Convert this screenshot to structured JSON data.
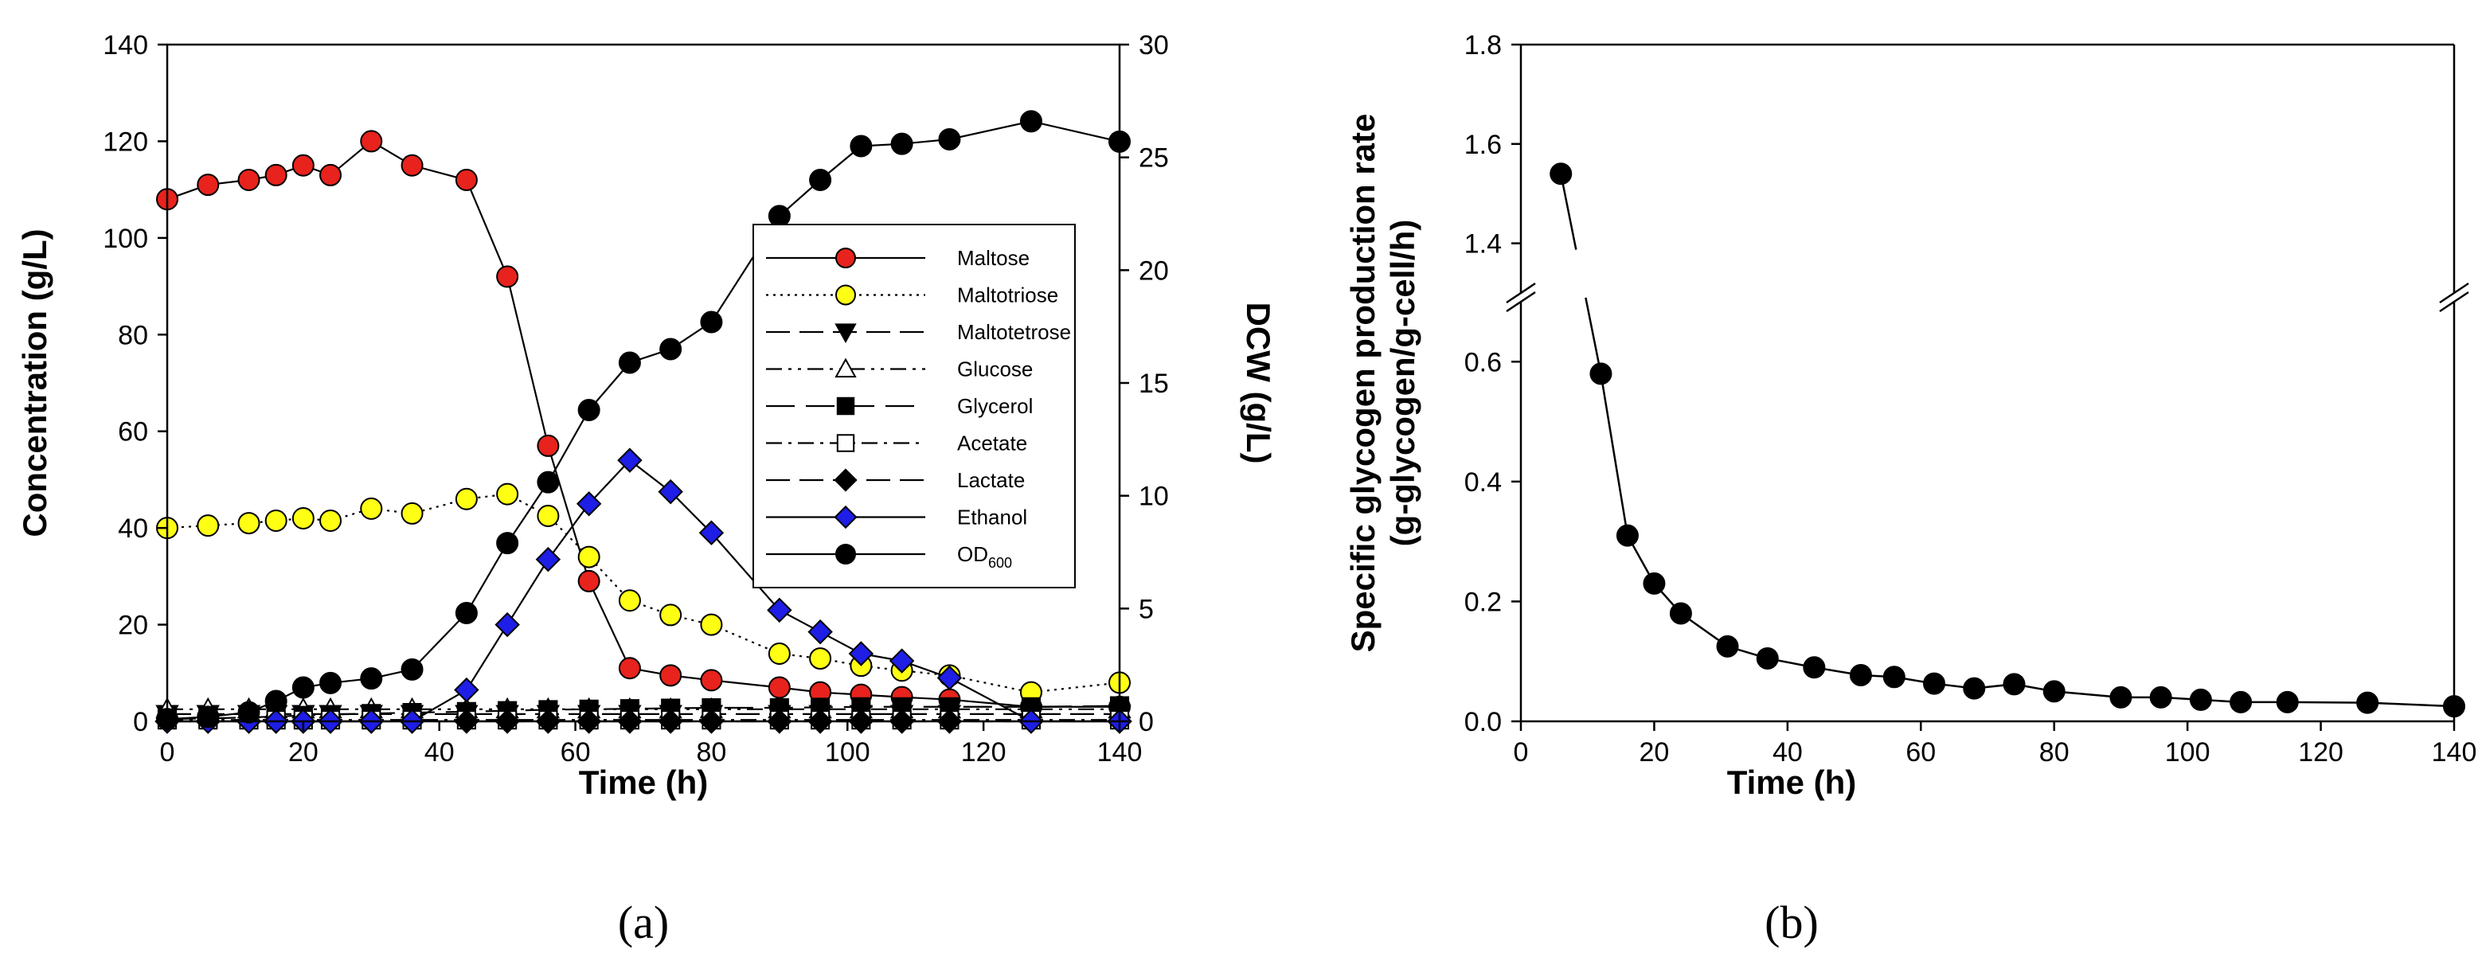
{
  "chart_data": [
    {
      "panel": "a",
      "type": "line",
      "panel_label": "(a)",
      "xlabel": "Time (h)",
      "ylabel": "Concentration (g/L)",
      "y2label": "DCW (g/L)",
      "xlim": [
        0,
        140
      ],
      "ylim": [
        0,
        140
      ],
      "y2lim": [
        0,
        30
      ],
      "xticks": [
        "0",
        "20",
        "40",
        "60",
        "80",
        "100",
        "120",
        "140"
      ],
      "yticks": [
        "0",
        "20",
        "40",
        "60",
        "80",
        "100",
        "120",
        "140"
      ],
      "y2ticks": [
        "0",
        "5",
        "10",
        "15",
        "20",
        "25",
        "30"
      ],
      "grid": false,
      "legend_position": "right",
      "series": [
        {
          "name": "Maltose",
          "axis": "left",
          "marker": "circle",
          "fill": "#e8221c",
          "dash": "",
          "x": [
            0,
            6,
            12,
            16,
            20,
            24,
            30,
            36,
            44,
            50,
            56,
            62,
            68,
            74,
            80,
            90,
            96,
            102,
            108,
            115,
            127,
            140
          ],
          "y": [
            108,
            111,
            112,
            113,
            115,
            113,
            120,
            115,
            112,
            92,
            57,
            29,
            11,
            9.5,
            8.5,
            7,
            6,
            5.5,
            5,
            4.5,
            3,
            3
          ]
        },
        {
          "name": "Maltotriose",
          "axis": "left",
          "marker": "circle",
          "fill": "#ffff14",
          "dash": "3 6",
          "x": [
            0,
            6,
            12,
            16,
            20,
            24,
            30,
            36,
            44,
            50,
            56,
            62,
            68,
            74,
            80,
            90,
            96,
            102,
            108,
            115,
            127,
            140
          ],
          "y": [
            40,
            40.5,
            41,
            41.5,
            42,
            41.5,
            44,
            43,
            46,
            47,
            42.5,
            34,
            25,
            22,
            20,
            14,
            13,
            11.5,
            10.5,
            9.5,
            6,
            8
          ]
        },
        {
          "name": "Maltotetrose",
          "axis": "left",
          "marker": "triangle-down",
          "fill": "#000000",
          "dash": "30 12",
          "x": [
            0,
            6,
            12,
            16,
            20,
            24,
            30,
            36,
            44,
            50,
            56,
            62,
            68,
            74,
            80,
            90,
            96,
            102,
            108,
            115,
            127,
            140
          ],
          "y": [
            1.5,
            1.5,
            1.5,
            1.5,
            1.5,
            1.5,
            1.5,
            1.5,
            1.5,
            1.5,
            1.5,
            1.5,
            1.5,
            1.5,
            1.5,
            1.5,
            1.5,
            1.5,
            1.5,
            1.5,
            1.5,
            1.5
          ]
        },
        {
          "name": "Glucose",
          "axis": "left",
          "marker": "triangle-up",
          "fill": "#ffffff",
          "dash": "20 8 4 8 4 8",
          "x": [
            0,
            6,
            12,
            16,
            20,
            24,
            30,
            36,
            44,
            50,
            56,
            62,
            68,
            74,
            80,
            90,
            96,
            102,
            108,
            115,
            127,
            140
          ],
          "y": [
            2.5,
            2.5,
            2.5,
            2.5,
            2.5,
            2.5,
            2.5,
            2.5,
            2.5,
            2.5,
            2.5,
            2.5,
            2.5,
            2.5,
            2.5,
            2.5,
            2.5,
            2.5,
            2.5,
            2.5,
            2.5,
            2.5
          ]
        },
        {
          "name": "Glycerol",
          "axis": "left",
          "marker": "square",
          "fill": "#000000",
          "dash": "36 14",
          "x": [
            0,
            6,
            12,
            16,
            20,
            24,
            30,
            36,
            44,
            50,
            56,
            62,
            68,
            74,
            80,
            90,
            96,
            102,
            108,
            115,
            127,
            140
          ],
          "y": [
            0.5,
            0.6,
            0.8,
            1,
            1.2,
            1.4,
            1.6,
            1.8,
            2,
            2.2,
            2.4,
            2.5,
            2.6,
            2.7,
            2.8,
            2.8,
            2.9,
            3,
            3,
            3,
            3,
            3.2
          ]
        },
        {
          "name": "Acetate",
          "axis": "left",
          "marker": "square",
          "fill": "#ffffff",
          "dash": "20 8 4 8",
          "x": [
            0,
            6,
            12,
            16,
            20,
            24,
            30,
            36,
            44,
            50,
            56,
            62,
            68,
            74,
            80,
            90,
            96,
            102,
            108,
            115,
            127,
            140
          ],
          "y": [
            0.3,
            0.3,
            0.3,
            0.3,
            0.3,
            0.3,
            0.3,
            0.3,
            0.3,
            0.3,
            0.3,
            0.3,
            0.3,
            0.3,
            0.3,
            0.3,
            0.3,
            0.3,
            0.3,
            0.3,
            0.3,
            0.3
          ]
        },
        {
          "name": "Lactate",
          "axis": "left",
          "marker": "diamond",
          "fill": "#000000",
          "dash": "30 12",
          "x": [
            0,
            6,
            12,
            16,
            20,
            24,
            30,
            36,
            44,
            50,
            56,
            62,
            68,
            74,
            80,
            90,
            96,
            102,
            108,
            115,
            127,
            140
          ],
          "y": [
            0,
            0,
            0,
            0,
            0,
            0,
            0,
            0,
            0,
            0,
            0,
            0,
            0,
            0,
            0,
            0,
            0,
            0,
            0,
            0,
            0,
            0
          ]
        },
        {
          "name": "Ethanol",
          "axis": "left",
          "marker": "diamond",
          "fill": "#1e1ee6",
          "dash": "",
          "x": [
            0,
            6,
            12,
            16,
            20,
            24,
            30,
            36,
            44,
            50,
            56,
            62,
            68,
            74,
            80,
            90,
            96,
            102,
            108,
            115,
            127,
            140
          ],
          "y": [
            0,
            0,
            0,
            0,
            0,
            0,
            0,
            0,
            6.5,
            20,
            33.5,
            45,
            54,
            47.5,
            39,
            23,
            18.5,
            14,
            12.5,
            9,
            0,
            0
          ]
        },
        {
          "name": "OD600",
          "legend_label": "OD",
          "legend_sub": "600",
          "axis": "right",
          "marker": "circle",
          "fill": "#000000",
          "dash": "",
          "x": [
            0,
            6,
            12,
            16,
            20,
            24,
            30,
            36,
            44,
            50,
            56,
            62,
            68,
            74,
            80,
            90,
            96,
            102,
            108,
            115,
            127,
            140
          ],
          "y": [
            0.1,
            0.2,
            0.4,
            0.9,
            1.5,
            1.7,
            1.9,
            2.3,
            4.8,
            7.9,
            10.6,
            13.8,
            15.9,
            16.5,
            17.7,
            22.4,
            24,
            25.5,
            25.6,
            25.8,
            26.6,
            25.7
          ]
        }
      ]
    },
    {
      "panel": "b",
      "type": "line",
      "panel_label": "(b)",
      "xlabel": "Time (h)",
      "ylabel": "Specific glycogen production rate",
      "ylabel2": "(g-glycogen/g-cell/h)",
      "xlim": [
        0,
        140
      ],
      "ylim_lower": [
        0,
        0.7
      ],
      "ylim_upper": [
        1.3,
        1.8
      ],
      "axis_break": true,
      "xticks": [
        "0",
        "20",
        "40",
        "60",
        "80",
        "100",
        "120",
        "140"
      ],
      "yticks_lower": [
        "0.0",
        "0.2",
        "0.4",
        "0.6"
      ],
      "yticks_upper": [
        "1.4",
        "1.6",
        "1.8"
      ],
      "grid": false,
      "series": [
        {
          "name": "Specific glycogen production rate",
          "marker": "circle",
          "fill": "#000000",
          "x": [
            6,
            12,
            16,
            20,
            24,
            31,
            37,
            44,
            51,
            56,
            62,
            68,
            74,
            80,
            90,
            96,
            102,
            108,
            115,
            127,
            140
          ],
          "y": [
            1.54,
            0.58,
            0.31,
            0.23,
            0.18,
            0.125,
            0.105,
            0.09,
            0.077,
            0.074,
            0.063,
            0.055,
            0.062,
            0.05,
            0.04,
            0.04,
            0.036,
            0.032,
            0.032,
            0.031,
            0.025
          ]
        }
      ]
    }
  ]
}
